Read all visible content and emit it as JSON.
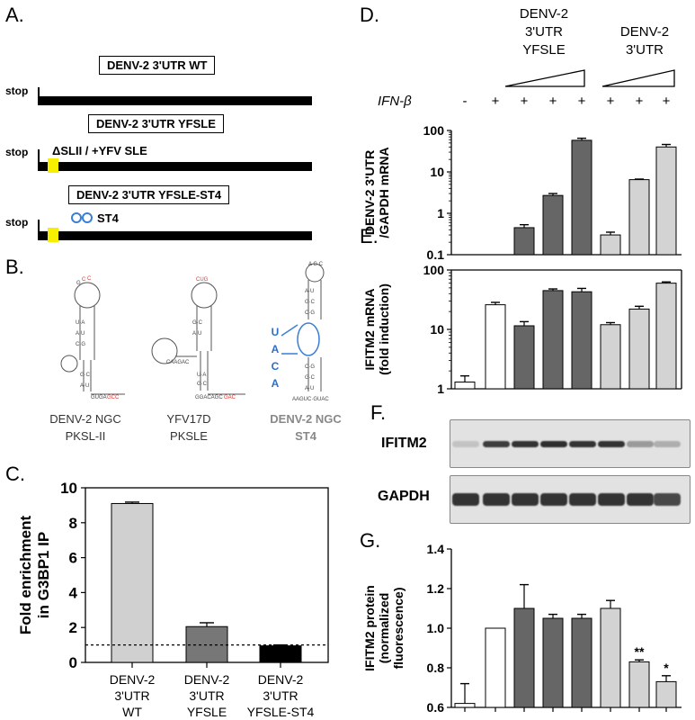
{
  "panels": {
    "A": {
      "label": "A.",
      "constructs": [
        {
          "name": "DENV-2 3'UTR WT",
          "stop": "stop",
          "annotation": ""
        },
        {
          "name": "DENV-2 3'UTR YFSLE",
          "stop": "stop",
          "annotation": "ΔSLII / +YFV SLE"
        },
        {
          "name": "DENV-2 3'UTR YFSLE-ST4",
          "stop": "stop",
          "annotation": "ST4"
        }
      ]
    },
    "B": {
      "label": "B.",
      "structures": [
        {
          "line1": "DENV-2 NGC",
          "line2": "PKSL-II"
        },
        {
          "line1": "YFV17D",
          "line2": "PKSLE"
        },
        {
          "line1": "DENV-2 NGC",
          "line2": "ST4"
        }
      ],
      "st4_letters": [
        "U",
        "A",
        "C",
        "A"
      ]
    },
    "C": {
      "label": "C."
    },
    "D": {
      "label": "D.",
      "group1": [
        "DENV-2",
        "3'UTR",
        "YFSLE"
      ],
      "group2": [
        "DENV-2",
        "3'UTR"
      ],
      "ifn_label": "IFN-β",
      "ifn_signs": [
        "-",
        "+",
        "+",
        "+",
        "+",
        "+",
        "+",
        "+"
      ]
    },
    "E": {
      "label": "E."
    },
    "F": {
      "label": "F.",
      "bands": [
        "IFITM2",
        "GAPDH"
      ]
    },
    "G": {
      "label": "G."
    }
  },
  "chart_data": [
    {
      "id": "C",
      "type": "bar",
      "categories": [
        [
          "DENV-2",
          "3'UTR",
          "WT"
        ],
        [
          "DENV-2",
          "3'UTR",
          "YFSLE"
        ],
        [
          "DENV-2",
          "3'UTR",
          "YFSLE-ST4"
        ]
      ],
      "values": [
        9.1,
        2.05,
        0.95
      ],
      "errors": [
        0.08,
        0.22,
        0.05
      ],
      "colors": [
        "#d0d0d0",
        "#777777",
        "#000000"
      ],
      "ylabel": [
        "Fold enrichment",
        "in G3BP1 IP"
      ],
      "ylim": [
        0,
        10
      ],
      "yticks": [
        0,
        2,
        4,
        6,
        8,
        10
      ],
      "reference_line": 1
    },
    {
      "id": "D",
      "type": "bar",
      "scale": "log",
      "values": [
        0.1,
        0.1,
        0.45,
        2.7,
        58,
        0.3,
        6.5,
        40
      ],
      "errors": [
        0,
        0,
        0.08,
        0.3,
        7,
        0.05,
        0.2,
        6
      ],
      "colors": [
        "#ffffff",
        "#ffffff",
        "#666666",
        "#666666",
        "#666666",
        "#d3d3d3",
        "#d3d3d3",
        "#d3d3d3"
      ],
      "ylabel": [
        "DENV-2 3'UTR",
        "/GAPDH mRNA"
      ],
      "ylim": [
        0.1,
        100
      ],
      "yticks": [
        "0.1",
        "1",
        "10",
        "100"
      ]
    },
    {
      "id": "E",
      "type": "bar",
      "scale": "log",
      "values": [
        1.3,
        26,
        11.5,
        45,
        43,
        12,
        22,
        60
      ],
      "errors": [
        0.35,
        2.5,
        2,
        3,
        6,
        1,
        2.5,
        3
      ],
      "colors": [
        "#ffffff",
        "#ffffff",
        "#666666",
        "#666666",
        "#666666",
        "#d3d3d3",
        "#d3d3d3",
        "#d3d3d3"
      ],
      "ylabel": [
        "IFITM2 mRNA",
        "(fold induction)"
      ],
      "ylim": [
        1,
        100
      ],
      "yticks": [
        "1",
        "10",
        "100"
      ]
    },
    {
      "id": "G",
      "type": "bar",
      "values": [
        0.62,
        1.0,
        1.1,
        1.05,
        1.05,
        1.1,
        0.83,
        0.73
      ],
      "errors": [
        0.1,
        0,
        0.12,
        0.02,
        0.02,
        0.04,
        0.01,
        0.03
      ],
      "colors": [
        "#ffffff",
        "#ffffff",
        "#666666",
        "#666666",
        "#666666",
        "#d3d3d3",
        "#d3d3d3",
        "#d3d3d3"
      ],
      "annotations": [
        "",
        "",
        "",
        "",
        "",
        "",
        "**",
        "*"
      ],
      "ylabel": [
        "IFITM2 protein",
        "(normalized",
        "fluorescence)"
      ],
      "ylim": [
        0.6,
        1.4
      ],
      "yticks": [
        "0.6",
        "0.8",
        "1.0",
        "1.2",
        "1.4"
      ]
    }
  ]
}
